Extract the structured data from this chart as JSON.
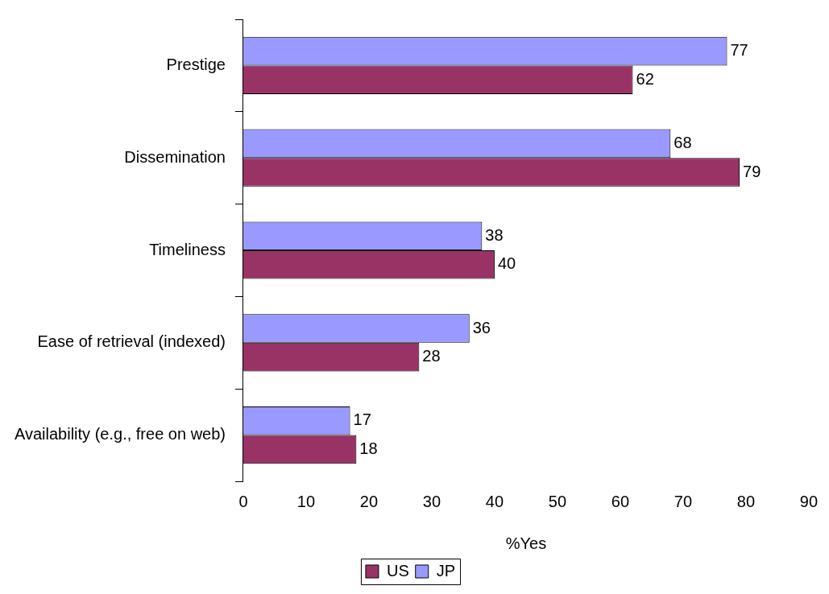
{
  "chart_data": {
    "type": "bar",
    "orientation": "horizontal",
    "xlabel": "%Yes",
    "categories": [
      "Prestige",
      "Dissemination",
      "Timeliness",
      "Ease of retrieval (indexed)",
      "Availability (e.g., free on web)"
    ],
    "series": [
      {
        "name": "JP",
        "color": "#9999ff",
        "values": [
          77,
          68,
          38,
          36,
          17
        ]
      },
      {
        "name": "US",
        "color": "#993366",
        "values": [
          62,
          79,
          40,
          28,
          18
        ]
      }
    ],
    "xlim": [
      0,
      90
    ],
    "xticks": [
      0,
      10,
      20,
      30,
      40,
      50,
      60,
      70,
      80,
      90
    ],
    "grid": false,
    "legend": "bottom",
    "data_labels": true
  }
}
